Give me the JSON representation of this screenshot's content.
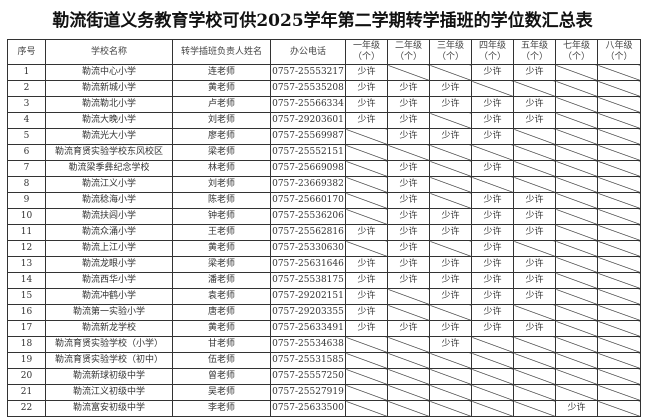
{
  "title": "勒流街道义务教育学校可供2025学年第二学期转学插班的学位数汇总表",
  "headers": [
    "序号",
    "学校名称",
    "转学插班负责人姓名",
    "办公电话",
    "一年级\n（个）",
    "二年级\n（个）",
    "三年级\n（个）",
    "四年级\n（个）",
    "五年级\n（个）",
    "七年级\n（个）",
    "八年级\n（个）"
  ],
  "slash_marker": "/",
  "rows": [
    {
      "no": "1",
      "school": "勒流中心小学",
      "contact": "连老师",
      "phone": "0757-25553217",
      "grades": [
        "少许",
        "/",
        "/",
        "少许",
        "少许",
        "/",
        "/"
      ]
    },
    {
      "no": "2",
      "school": "勒流新城小学",
      "contact": "黄老师",
      "phone": "0757-25535208",
      "grades": [
        "少许",
        "少许",
        "少许",
        "/",
        "/",
        "/",
        "/"
      ]
    },
    {
      "no": "3",
      "school": "勒流勒北小学",
      "contact": "卢老师",
      "phone": "0757-25566334",
      "grades": [
        "少许",
        "少许",
        "少许",
        "少许",
        "少许",
        "/",
        "/"
      ]
    },
    {
      "no": "4",
      "school": "勒流大晚小学",
      "contact": "刘老师",
      "phone": "0757-29203601",
      "grades": [
        "少许",
        "少许",
        "/",
        "少许",
        "少许",
        "/",
        "/"
      ]
    },
    {
      "no": "5",
      "school": "勒流光大小学",
      "contact": "廖老师",
      "phone": "0757-25569987",
      "grades": [
        "/",
        "少许",
        "少许",
        "少许",
        "/",
        "/",
        "/"
      ]
    },
    {
      "no": "6",
      "school": "勒流育贤实验学校东风校区",
      "contact": "梁老师",
      "phone": "0757-25552151",
      "grades": [
        "/",
        "/",
        "/",
        "/",
        "/",
        "/",
        "/"
      ]
    },
    {
      "no": "7",
      "school": "勒流梁季彝纪念学校",
      "contact": "林老师",
      "phone": "0757-25669098",
      "grades": [
        "/",
        "少许",
        "/",
        "少许",
        "/",
        "/",
        "/"
      ]
    },
    {
      "no": "8",
      "school": "勒流江义小学",
      "contact": "刘老师",
      "phone": "0757-23669382",
      "grades": [
        "/",
        "少许",
        "/",
        "/",
        "/",
        "/",
        "/"
      ]
    },
    {
      "no": "9",
      "school": "勒流稔海小学",
      "contact": "陈老师",
      "phone": "0757-25660170",
      "grades": [
        "/",
        "少许",
        "/",
        "少许",
        "少许",
        "/",
        "/"
      ]
    },
    {
      "no": "10",
      "school": "勒流扶闾小学",
      "contact": "钟老师",
      "phone": "0757-25536206",
      "grades": [
        "/",
        "少许",
        "少许",
        "少许",
        "少许",
        "/",
        "/"
      ]
    },
    {
      "no": "11",
      "school": "勒流众涌小学",
      "contact": "王老师",
      "phone": "0757-25562816",
      "grades": [
        "少许",
        "少许",
        "少许",
        "少许",
        "少许",
        "/",
        "/"
      ]
    },
    {
      "no": "12",
      "school": "勒流上江小学",
      "contact": "黄老师",
      "phone": "0757-25330630",
      "grades": [
        "/",
        "少许",
        "/",
        "少许",
        "/",
        "/",
        "/"
      ]
    },
    {
      "no": "13",
      "school": "勒流龙眼小学",
      "contact": "梁老师",
      "phone": "0757-25631646",
      "grades": [
        "少许",
        "少许",
        "少许",
        "少许",
        "少许",
        "/",
        "/"
      ]
    },
    {
      "no": "14",
      "school": "勒流西华小学",
      "contact": "潘老师",
      "phone": "0757-25538175",
      "grades": [
        "少许",
        "少许",
        "少许",
        "少许",
        "少许",
        "/",
        "/"
      ]
    },
    {
      "no": "15",
      "school": "勒流冲鹤小学",
      "contact": "袁老师",
      "phone": "0757-29202151",
      "grades": [
        "少许",
        "/",
        "少许",
        "少许",
        "少许",
        "/",
        "/"
      ]
    },
    {
      "no": "16",
      "school": "勒流第一实验小学",
      "contact": "唐老师",
      "phone": "0757-29203355",
      "grades": [
        "少许",
        "/",
        "/",
        "少许",
        "/",
        "/",
        "/"
      ]
    },
    {
      "no": "17",
      "school": "勒流新龙学校",
      "contact": "黄老师",
      "phone": "0757-25633491",
      "grades": [
        "少许",
        "少许",
        "少许",
        "少许",
        "少许",
        "/",
        "/"
      ]
    },
    {
      "no": "18",
      "school": "勒流育贤实验学校（小学）",
      "contact": "甘老师",
      "phone": "0757-25534638",
      "grades": [
        "/",
        "/",
        "少许",
        "/",
        "/",
        "/",
        "/"
      ]
    },
    {
      "no": "19",
      "school": "勒流育贤实验学校（初中）",
      "contact": "伍老师",
      "phone": "0757-25531585",
      "grades": [
        "/",
        "/",
        "/",
        "/",
        "/",
        "/",
        "/"
      ]
    },
    {
      "no": "20",
      "school": "勒流新球初级中学",
      "contact": "曾老师",
      "phone": "0757-25557250",
      "grades": [
        "/",
        "/",
        "/",
        "/",
        "/",
        "/",
        "/"
      ]
    },
    {
      "no": "21",
      "school": "勒流江义初级中学",
      "contact": "吴老师",
      "phone": "0757-25527919",
      "grades": [
        "/",
        "/",
        "/",
        "/",
        "/",
        "/",
        "/"
      ]
    },
    {
      "no": "22",
      "school": "勒流富安初级中学",
      "contact": "李老师",
      "phone": "0757-25633500",
      "grades": [
        "/",
        "/",
        "/",
        "/",
        "/",
        "少许",
        "/"
      ]
    }
  ]
}
